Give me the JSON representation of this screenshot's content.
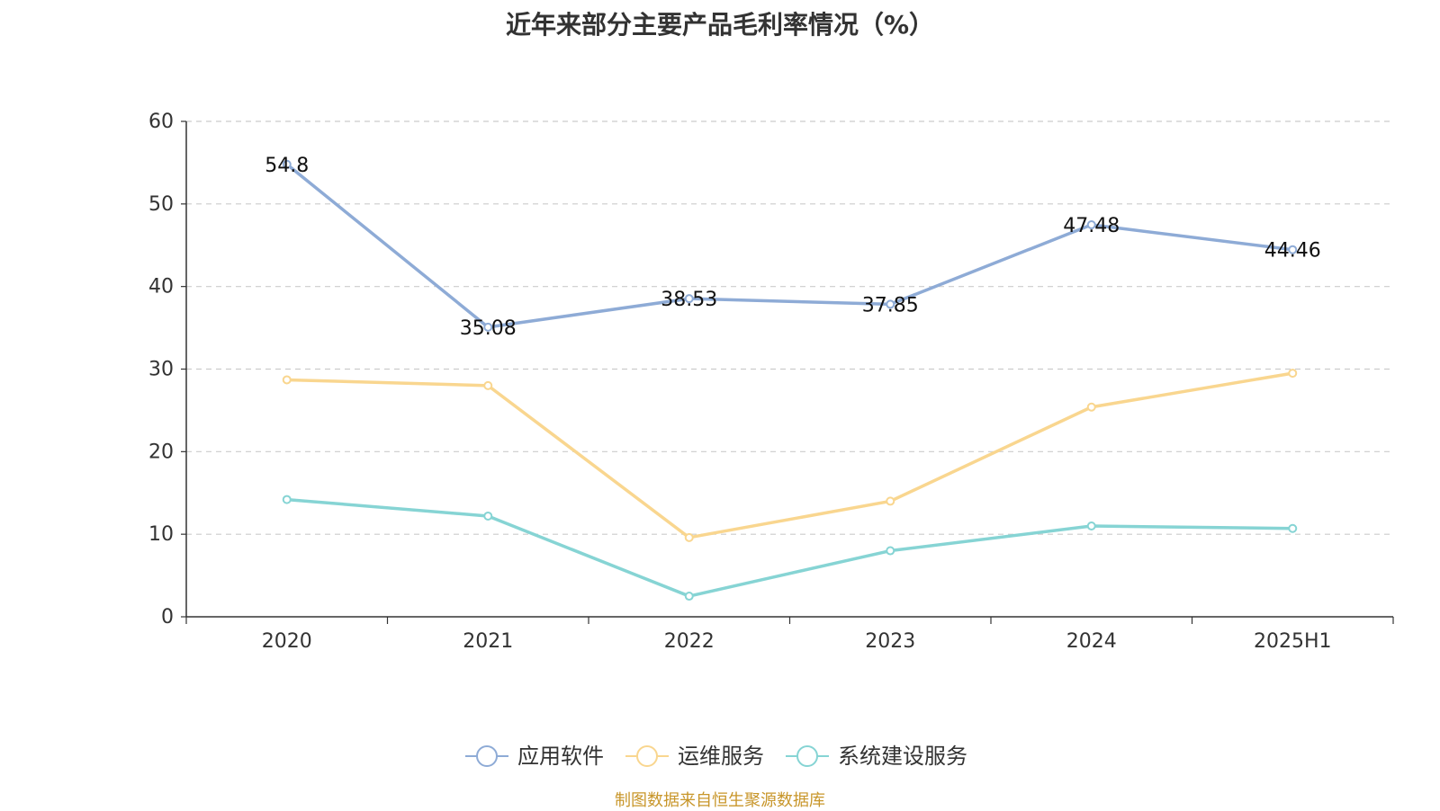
{
  "title": "近年来部分主要产品毛利率情况（%）",
  "source": "制图数据来自恒生聚源数据库",
  "chart_data": {
    "type": "line",
    "title": "近年来部分主要产品毛利率情况（%）",
    "categories": [
      "2020",
      "2021",
      "2022",
      "2023",
      "2024",
      "2025H1"
    ],
    "ylim": [
      0,
      60
    ],
    "yticks": [
      0,
      10,
      20,
      30,
      40,
      50,
      60
    ],
    "grid": true,
    "legend_position": "bottom-center",
    "series": [
      {
        "name": "应用软件",
        "values": [
          54.8,
          35.08,
          38.53,
          37.85,
          47.48,
          44.46
        ],
        "color": "#8eabd6",
        "show_labels": true
      },
      {
        "name": "运维服务",
        "values": [
          28.7,
          28.0,
          9.6,
          14.0,
          25.4,
          29.5
        ],
        "color": "#f9d68f",
        "show_labels": false
      },
      {
        "name": "系统建设服务",
        "values": [
          14.2,
          12.2,
          2.5,
          8.0,
          11.0,
          10.7
        ],
        "color": "#86d4d4",
        "show_labels": false
      }
    ]
  }
}
